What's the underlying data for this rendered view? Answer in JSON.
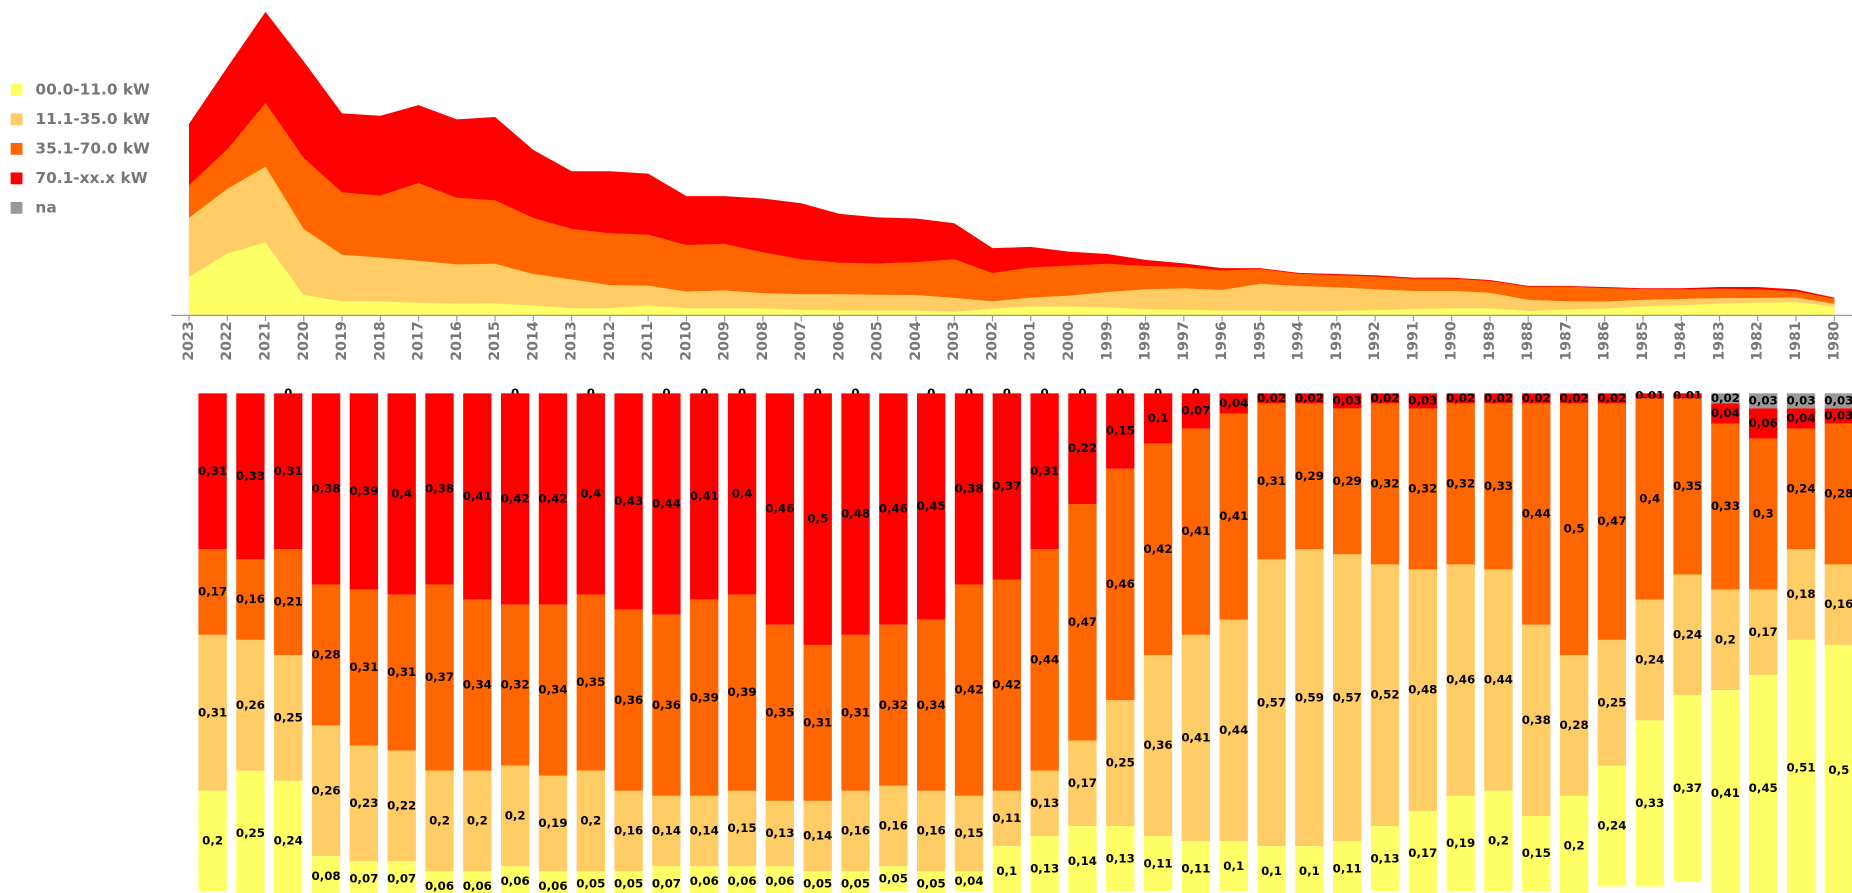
{
  "chart_data": {
    "type": "area-and-share-bars",
    "x": [
      "2023",
      "2022",
      "2021",
      "2020",
      "2019",
      "2018",
      "2017",
      "2016",
      "2015",
      "2014",
      "2013",
      "2012",
      "2011",
      "2010",
      "2009",
      "2008",
      "2007",
      "2006",
      "2005",
      "2004",
      "2003",
      "2002",
      "2001",
      "2000",
      "1999",
      "1998",
      "1997",
      "1996",
      "1995",
      "1994",
      "1993",
      "1992",
      "1991",
      "1990",
      "1989",
      "1988",
      "1987",
      "1986",
      "1985",
      "1984",
      "1983",
      "1982",
      "1981",
      "1980"
    ],
    "totals": [
      162,
      210,
      257,
      215,
      171,
      169,
      178,
      166,
      168,
      140,
      122,
      122,
      120,
      101,
      101,
      99,
      95,
      86,
      83,
      82,
      78,
      57,
      58,
      54,
      52,
      47,
      44,
      40,
      40,
      36,
      35,
      34,
      32,
      32,
      30,
      25,
      25,
      24,
      23,
      23,
      24,
      24,
      22,
      15
    ],
    "series": [
      {
        "name": "00.0-11.0 kW",
        "color": "#ffff66",
        "values": [
          0.2,
          0.25,
          0.24,
          0.08,
          0.07,
          0.07,
          0.06,
          0.06,
          0.06,
          0.06,
          0.05,
          0.05,
          0.07,
          0.06,
          0.06,
          0.06,
          0.05,
          0.05,
          0.05,
          0.05,
          0.04,
          0.1,
          0.13,
          0.14,
          0.13,
          0.11,
          0.11,
          0.1,
          0.1,
          0.1,
          0.11,
          0.13,
          0.17,
          0.19,
          0.2,
          0.15,
          0.2,
          0.24,
          0.33,
          0.37,
          0.41,
          0.45,
          0.51,
          0.5
        ],
        "value_labels": [
          "0,2",
          "0,25",
          "0,24",
          "0,08",
          "0,07",
          "0,07",
          "0,06",
          "0,06",
          "0,06",
          "0,06",
          "0,05",
          "0,05",
          "0,07",
          "0,06",
          "0,06",
          "0,06",
          "0,05",
          "0,05",
          "0,05",
          "0,05",
          "0,04",
          "0,1",
          "0,13",
          "0,14",
          "0,13",
          "0,11",
          "0,11",
          "0,1",
          "0,1",
          "0,1",
          "0,11",
          "0,13",
          "0,17",
          "0,19",
          "0,2",
          "0,15",
          "0,2",
          "0,24",
          "0,33",
          "0,37",
          "0,41",
          "0,45",
          "0,51",
          "0,5"
        ]
      },
      {
        "name": "11.1-35.0 kW",
        "color": "#ffcc66",
        "values": [
          0.31,
          0.26,
          0.25,
          0.26,
          0.23,
          0.22,
          0.2,
          0.2,
          0.2,
          0.19,
          0.2,
          0.16,
          0.14,
          0.14,
          0.15,
          0.13,
          0.14,
          0.16,
          0.16,
          0.16,
          0.15,
          0.11,
          0.13,
          0.17,
          0.25,
          0.36,
          0.41,
          0.44,
          0.57,
          0.59,
          0.57,
          0.52,
          0.48,
          0.46,
          0.44,
          0.38,
          0.28,
          0.25,
          0.24,
          0.24,
          0.2,
          0.17,
          0.18,
          0.16
        ],
        "value_labels": [
          "0,31",
          "0,26",
          "0,25",
          "0,26",
          "0,23",
          "0,22",
          "0,2",
          "0,2",
          "0,2",
          "0,19",
          "0,2",
          "0,16",
          "0,14",
          "0,14",
          "0,15",
          "0,13",
          "0,14",
          "0,16",
          "0,16",
          "0,16",
          "0,15",
          "0,11",
          "0,13",
          "0,17",
          "0,25",
          "0,36",
          "0,41",
          "0,44",
          "0,57",
          "0,59",
          "0,57",
          "0,52",
          "0,48",
          "0,46",
          "0,44",
          "0,38",
          "0,28",
          "0,25",
          "0,24",
          "0,24",
          "0,2",
          "0,17",
          "0,18",
          "0,16"
        ]
      },
      {
        "name": "35.1-70.0 kW",
        "color": "#ff6600",
        "values": [
          0.17,
          0.16,
          0.21,
          0.28,
          0.31,
          0.31,
          0.37,
          0.34,
          0.32,
          0.34,
          0.35,
          0.36,
          0.36,
          0.39,
          0.39,
          0.35,
          0.31,
          0.31,
          0.32,
          0.34,
          0.42,
          0.42,
          0.44,
          0.47,
          0.46,
          0.42,
          0.41,
          0.41,
          0.31,
          0.29,
          0.29,
          0.32,
          0.32,
          0.32,
          0.33,
          0.44,
          0.5,
          0.47,
          0.4,
          0.35,
          0.33,
          0.3,
          0.24,
          0.28
        ],
        "value_labels": [
          "0,17",
          "0,16",
          "0,21",
          "0,28",
          "0,31",
          "0,31",
          "0,37",
          "0,34",
          "0,32",
          "0,34",
          "0,35",
          "0,36",
          "0,36",
          "0,39",
          "0,39",
          "0,35",
          "0,31",
          "0,31",
          "0,32",
          "0,34",
          "0,42",
          "0,42",
          "0,44",
          "0,47",
          "0,46",
          "0,42",
          "0,41",
          "0,41",
          "0,31",
          "0,29",
          "0,29",
          "0,32",
          "0,32",
          "0,32",
          "0,33",
          "0,44",
          "0,5",
          "0,47",
          "0,4",
          "0,35",
          "0,33",
          "0,3",
          "0,24",
          "0,28"
        ]
      },
      {
        "name": "70.1-xx.x kW",
        "color": "#ff0000",
        "values": [
          0.31,
          0.33,
          0.31,
          0.38,
          0.39,
          0.4,
          0.38,
          0.41,
          0.42,
          0.42,
          0.4,
          0.43,
          0.44,
          0.41,
          0.4,
          0.46,
          0.5,
          0.48,
          0.46,
          0.45,
          0.38,
          0.37,
          0.31,
          0.22,
          0.15,
          0.1,
          0.07,
          0.04,
          0.02,
          0.02,
          0.03,
          0.02,
          0.03,
          0.02,
          0.02,
          0.02,
          0.02,
          0.02,
          0.01,
          0.01,
          0.04,
          0.06,
          0.04,
          0.03
        ],
        "value_labels": [
          "0,31",
          "0,33",
          "0,31",
          "0,38",
          "0,39",
          "0,4",
          "0,38",
          "0,41",
          "0,42",
          "0,42",
          "0,4",
          "0,43",
          "0,44",
          "0,41",
          "0,4",
          "0,46",
          "0,5",
          "0,48",
          "0,46",
          "0,45",
          "0,38",
          "0,37",
          "0,31",
          "0,22",
          "0,15",
          "0,1",
          "0,07",
          "0,04",
          "0,02",
          "0,02",
          "0,03",
          "0,02",
          "0,03",
          "0,02",
          "0,02",
          "0,02",
          "0,02",
          "0,02",
          "0,01",
          "0,01",
          "0,04",
          "0,06",
          "0,04",
          "0,03"
        ]
      },
      {
        "name": "na",
        "color": "#999999",
        "values": [
          null,
          null,
          0,
          null,
          null,
          null,
          null,
          null,
          0,
          null,
          0,
          null,
          0,
          0,
          0,
          null,
          0,
          0,
          null,
          0,
          0,
          0,
          0,
          0,
          0,
          0,
          0,
          null,
          null,
          null,
          null,
          null,
          null,
          null,
          null,
          null,
          null,
          null,
          null,
          null,
          0.02,
          0.03,
          0.03,
          0.03
        ],
        "value_labels": [
          null,
          null,
          "0",
          null,
          null,
          null,
          null,
          null,
          "0",
          null,
          "0",
          null,
          "0",
          "0",
          "0",
          null,
          "0",
          "0",
          null,
          "0",
          "0",
          "0",
          "0",
          "0",
          "0",
          "0",
          "0",
          null,
          null,
          null,
          null,
          null,
          null,
          null,
          null,
          null,
          null,
          null,
          null,
          null,
          "0,02",
          "0,03",
          "0,03",
          "0,03"
        ]
      }
    ]
  }
}
